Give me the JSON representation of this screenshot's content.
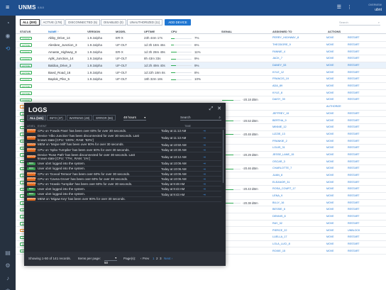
{
  "app": {
    "brand": "UNMS",
    "version": "0.8.0"
  },
  "user": {
    "label": "OVERVIEW",
    "name": "ubnt"
  },
  "filters": [
    {
      "label": "ALL (200)",
      "selected": true
    },
    {
      "label": "ACTIVE (178)",
      "selected": false
    },
    {
      "label": "DISCONNECTED (5)",
      "selected": false
    },
    {
      "label": "DISABLED (0)",
      "selected": false
    },
    {
      "label": "UNAUTHORIZED (11)",
      "selected": false
    }
  ],
  "add_device_label": "ADD DEVICE",
  "search_placeholder": "Search",
  "columns": {
    "status": "STATUS",
    "name": "NAME ↑",
    "version": "VERSION",
    "model": "MODEL",
    "uptime": "UPTIME",
    "cpu": "CPU",
    "signal": "SIGNAL",
    "assigned": "ASSIGNED TO",
    "actions": "ACTIONS"
  },
  "devices": [
    {
      "status": "ACTIVE",
      "name": "Abby_Drive_14",
      "version": "1.9.2alpha",
      "model": "ER-X",
      "uptime": "23h 44m 17s",
      "cpu": "7%",
      "cpu_pct": 7,
      "signal": "",
      "signal_pct": 0,
      "assigned": "PERRY_HIGHWAY_8",
      "action1": "MOVE",
      "action2": "RESTART",
      "hl": false
    },
    {
      "status": "ACTIVE",
      "name": "Alesbee_Junction_3",
      "version": "1.9.2alpha",
      "model": "UF-OLT",
      "uptime": "1d 3h 18m 46s",
      "cpu": "6%",
      "cpu_pct": 6,
      "signal": "",
      "signal_pct": 0,
      "assigned": "THEODORE_9",
      "action1": "MOVE",
      "action2": "RESTART",
      "hl": false
    },
    {
      "status": "ACTIVE",
      "name": "Amaste_Highway_8",
      "version": "1.9.2alpha",
      "model": "ER-X",
      "uptime": "1d 3h 28m 49s",
      "cpu": "11%",
      "cpu_pct": 11,
      "signal": "",
      "signal_pct": 0,
      "assigned": "FANNIE_4",
      "action1": "MOVE",
      "action2": "RESTART",
      "hl": false
    },
    {
      "status": "ACTIVE",
      "name": "Aplk_Junction_14",
      "version": "1.9.2alpha",
      "model": "UF-OLT",
      "uptime": "8h 43m 33s",
      "cpu": "9%",
      "cpu_pct": 9,
      "signal": "",
      "signal_pct": 0,
      "assigned": "JACK_7",
      "action1": "MOVE",
      "action2": "RESTART",
      "hl": false
    },
    {
      "status": "ACTIVE",
      "name": "Baldoa_Drive_3",
      "version": "1.9.2alpha",
      "model": "UF-OLT",
      "uptime": "1d 2h 49m 40s",
      "cpu": "9%",
      "cpu_pct": 9,
      "signal": "",
      "signal_pct": 0,
      "assigned": "DANEY_53",
      "action1": "MOVE",
      "action2": "RESTART",
      "hl": true
    },
    {
      "status": "ACTIVE",
      "name": "Baed_Road_16",
      "version": "1.9.2alpha",
      "model": "UF-OLT",
      "uptime": "1d 22h 18m 8s",
      "cpu": "8%",
      "cpu_pct": 8,
      "signal": "",
      "signal_pct": 0,
      "assigned": "KYLE_12",
      "action1": "MOVE",
      "action2": "RESTART",
      "hl": false
    },
    {
      "status": "ACTIVE",
      "name": "Baplok_Pike_5",
      "version": "1.9.2alpha",
      "model": "UF-OLT",
      "uptime": "18h 32m 18s",
      "cpu": "10%",
      "cpu_pct": 10,
      "signal": "",
      "signal_pct": 0,
      "assigned": "FRANCIS_19",
      "action1": "MOVE",
      "action2": "RESTART",
      "hl": false
    },
    {
      "status": "ACTIVE",
      "name": "",
      "version": "",
      "model": "",
      "uptime": "",
      "cpu": "",
      "cpu_pct": 0,
      "signal": "",
      "signal_pct": 0,
      "assigned": "ADA_89",
      "action1": "MOVE",
      "action2": "RESTART",
      "hl": false
    },
    {
      "status": "ACTIVE",
      "name": "",
      "version": "",
      "model": "",
      "uptime": "",
      "cpu": "",
      "cpu_pct": 0,
      "signal": "",
      "signal_pct": 0,
      "assigned": "KYLE_8",
      "action1": "MOVE",
      "action2": "RESTART",
      "hl": false
    },
    {
      "status": "ACTIVE",
      "name": "",
      "version": "",
      "model": "",
      "uptime": "",
      "cpu": "",
      "cpu_pct": 0,
      "signal": "-20.18 dBm",
      "signal_pct": 60,
      "assigned": "DAISY_39",
      "action1": "MOVE",
      "action2": "RESTART",
      "hl": false
    },
    {
      "status": "UNAUTHORIZED",
      "name": "",
      "version": "",
      "model": "",
      "uptime": "",
      "cpu": "",
      "cpu_pct": 0,
      "signal": "",
      "signal_pct": 0,
      "assigned": "",
      "action1": "AUTHORIZE",
      "action2": "",
      "hl": false
    },
    {
      "status": "ACTIVE",
      "name": "",
      "version": "",
      "model": "",
      "uptime": "",
      "cpu": "",
      "cpu_pct": 0,
      "signal": "",
      "signal_pct": 0,
      "assigned": "JEFFREY_19",
      "action1": "MOVE",
      "action2": "RESTART",
      "hl": false
    },
    {
      "status": "ACTIVE",
      "name": "",
      "version": "",
      "model": "",
      "uptime": "",
      "cpu": "",
      "cpu_pct": 0,
      "signal": "-20.53 dBm",
      "signal_pct": 60,
      "assigned": "BERTHA_9",
      "action1": "MOVE",
      "action2": "RESTART",
      "hl": false
    },
    {
      "status": "ACTIVE",
      "name": "",
      "version": "",
      "model": "",
      "uptime": "",
      "cpu": "",
      "cpu_pct": 0,
      "signal": "",
      "signal_pct": 0,
      "assigned": "MINNIE_12",
      "action1": "MOVE",
      "action2": "RESTART",
      "hl": false
    },
    {
      "status": "ACTIVE",
      "name": "",
      "version": "",
      "model": "",
      "uptime": "",
      "cpu": "",
      "cpu_pct": 0,
      "signal": "-20.48 dBm",
      "signal_pct": 60,
      "assigned": "LIZZIE_13",
      "action1": "MOVE",
      "action2": "RESTART",
      "hl": false
    },
    {
      "status": "ACTIVE",
      "name": "",
      "version": "",
      "model": "",
      "uptime": "",
      "cpu": "",
      "cpu_pct": 0,
      "signal": "",
      "signal_pct": 0,
      "assigned": "FRANKIE_2",
      "action1": "MOVE",
      "action2": "RESTART",
      "hl": false
    },
    {
      "status": "ACTIVE",
      "name": "",
      "version": "",
      "model": "",
      "uptime": "",
      "cpu": "",
      "cpu_pct": 0,
      "signal": "",
      "signal_pct": 0,
      "assigned": "LOUIS_31",
      "action1": "MOVE",
      "action2": "RESTART",
      "hl": false
    },
    {
      "status": "ACTIVE",
      "name": "",
      "version": "",
      "model": "",
      "uptime": "",
      "cpu": "",
      "cpu_pct": 0,
      "signal": "-20.29 dBm",
      "signal_pct": 60,
      "assigned": "JESSE_LANE_15",
      "action1": "MOVE",
      "action2": "RESTART",
      "hl": false
    },
    {
      "status": "ACTIVE",
      "name": "",
      "version": "",
      "model": "",
      "uptime": "",
      "cpu": "",
      "cpu_pct": 0,
      "signal": "",
      "signal_pct": 0,
      "assigned": "OSCAR_3",
      "action1": "MOVE",
      "action2": "RESTART",
      "hl": false
    },
    {
      "status": "ACTIVE",
      "name": "",
      "version": "",
      "model": "",
      "uptime": "",
      "cpu": "",
      "cpu_pct": 0,
      "signal": "-20.46 dBm",
      "signal_pct": 60,
      "assigned": "CHARLOTTE_7",
      "action1": "MOVE",
      "action2": "RESTART",
      "hl": false
    },
    {
      "status": "ACTIVE",
      "name": "",
      "version": "",
      "model": "",
      "uptime": "",
      "cpu": "",
      "cpu_pct": 0,
      "signal": "",
      "signal_pct": 0,
      "assigned": "JUAN_8",
      "action1": "MOVE",
      "action2": "RESTART",
      "hl": false
    },
    {
      "status": "ACTIVE",
      "name": "",
      "version": "",
      "model": "",
      "uptime": "",
      "cpu": "",
      "cpu_pct": 0,
      "signal": "",
      "signal_pct": 0,
      "assigned": "ELEANOR_31",
      "action1": "MOVE",
      "action2": "RESTART",
      "hl": false
    },
    {
      "status": "ACTIVE",
      "name": "",
      "version": "",
      "model": "",
      "uptime": "",
      "cpu": "",
      "cpu_pct": 0,
      "signal": "-20.43 dBm",
      "signal_pct": 60,
      "assigned": "ROSA_COURT_17",
      "action1": "MOVE",
      "action2": "RESTART",
      "hl": false
    },
    {
      "status": "ACTIVE",
      "name": "",
      "version": "",
      "model": "",
      "uptime": "",
      "cpu": "",
      "cpu_pct": 0,
      "signal": "",
      "signal_pct": 0,
      "assigned": "LENA_9",
      "action1": "MOVE",
      "action2": "RESTART",
      "hl": false
    },
    {
      "status": "ACTIVE",
      "name": "",
      "version": "",
      "model": "",
      "uptime": "",
      "cpu": "",
      "cpu_pct": 0,
      "signal": "-20.38 dBm",
      "signal_pct": 60,
      "assigned": "BILLY_16",
      "action1": "MOVE",
      "action2": "RESTART",
      "hl": false
    },
    {
      "status": "ACTIVE",
      "name": "",
      "version": "",
      "model": "",
      "uptime": "",
      "cpu": "",
      "cpu_pct": 0,
      "signal": "",
      "signal_pct": 0,
      "assigned": "BESSIE_6",
      "action1": "MOVE",
      "action2": "RESTART",
      "hl": false
    },
    {
      "status": "ACTIVE",
      "name": "",
      "version": "",
      "model": "",
      "uptime": "",
      "cpu": "",
      "cpu_pct": 0,
      "signal": "",
      "signal_pct": 0,
      "assigned": "DENNIS_8",
      "action1": "MOVE",
      "action2": "RESTART",
      "hl": false
    },
    {
      "status": "ACTIVE",
      "name": "",
      "version": "",
      "model": "",
      "uptime": "",
      "cpu": "",
      "cpu_pct": 0,
      "signal": "",
      "signal_pct": 0,
      "assigned": "RAY_32",
      "action1": "MOVE",
      "action2": "RESTART",
      "hl": false
    },
    {
      "status": "DISCONNECTED",
      "name": "Dover_Avenue_29",
      "version": "1.9.2alpha",
      "model": "UF-OLT",
      "uptime": "1d 22h 20m 52s",
      "cpu": "",
      "cpu_pct": 0,
      "signal": "",
      "signal_pct": 0,
      "assigned": "PIERCE_22",
      "action1": "MOVE",
      "action2": "UNBLOCK",
      "hl": false
    },
    {
      "status": "ACTIVE",
      "name": "Duran_Lane_14",
      "version": "1.9.2alpha",
      "model": "NanoG",
      "uptime": "",
      "cpu": "",
      "cpu_pct": 0,
      "signal": "",
      "signal_pct": 0,
      "assigned": "LUELLA_17",
      "action1": "MOVE",
      "action2": "RESTART",
      "hl": false
    },
    {
      "status": "ACTIVE",
      "name": "Ecrnd_Way_6",
      "version": "1.9.2alpha",
      "model": "ERPro-8",
      "uptime": "1d 3h 30m 4s",
      "cpu": "",
      "cpu_pct": 0,
      "signal": "",
      "signal_pct": 0,
      "assigned": "LOLA_LUCI_8",
      "action1": "MOVE",
      "action2": "RESTART",
      "hl": false
    },
    {
      "status": "ACTIVE",
      "name": "Eyebhb_Key_11",
      "version": "1.9.2alpha",
      "model": "ER-X",
      "uptime": "1d 3h 29m 20s",
      "cpu": "",
      "cpu_pct": 0,
      "signal": "",
      "signal_pct": 0,
      "assigned": "ROXIE_15",
      "action1": "MOVE",
      "action2": "RESTART",
      "hl": false
    }
  ],
  "logs": {
    "title": "LOGS",
    "tabs": [
      {
        "label": "ALL (141)",
        "selected": true
      },
      {
        "label": "INFO (37)",
        "selected": false
      },
      {
        "label": "WARNING (48)",
        "selected": false
      },
      {
        "label": "ERROR (56)",
        "selected": false
      }
    ],
    "range": "48 hours",
    "search_placeholder": "Search",
    "col_level": "LEVEL",
    "col_event": "EVENT",
    "col_time": "TIME",
    "entries": [
      {
        "level": "WARNING",
        "msg": "CPU on 'Fowds Pass' has been over 60% for over 30 seconds.",
        "time": "Today at 11:13 AM",
        "lines": 1
      },
      {
        "level": "WARNING",
        "msg": "Device 'Albo Junction' has been disconnected for over 30 seconds. Last known state [CPU: '100%', RAM: '92%']",
        "time": "Today at 11:13 AM",
        "lines": 2
      },
      {
        "level": "WARNING",
        "msg": "MEM on 'Mojse Mill' has been over 90% for over 30 seconds.",
        "time": "Today at 10:50 AM",
        "lines": 1
      },
      {
        "level": "WARNING",
        "msg": "CPU on 'Spbo Turnpike' has been over 60% for over 30 seconds.",
        "time": "Today at 10:30 AM",
        "lines": 1
      },
      {
        "level": "WARNING",
        "msg": "Device 'Rose Path' has been disconnected for over 30 seconds. Last known state [CPU: '77%', RAM: '1%']",
        "time": "Today at 10:12 AM",
        "lines": 2
      },
      {
        "level": "INFO",
        "msg": "User ubnt logged into the system.",
        "time": "Today at 10:06 AM",
        "lines": 1
      },
      {
        "level": "INFO",
        "msg": "User ubnt logged into the system.",
        "time": "Today at 10:06 AM",
        "lines": 1
      },
      {
        "level": "WARNING",
        "msg": "CPU on 'Govod Terrace' has been over 60% for over 30 seconds.",
        "time": "Today at 10:06 AM",
        "lines": 1
      },
      {
        "level": "WARNING",
        "msg": "CPU on 'Cavna Grove' has been over 60% for over 30 seconds.",
        "time": "Today at 10:06 AM",
        "lines": 1
      },
      {
        "level": "WARNING",
        "msg": "CPU on 'Howdo Turnpike' has been over 60% for over 30 seconds.",
        "time": "Today at 9:48 AM",
        "lines": 1
      },
      {
        "level": "INFO",
        "msg": "User ubnt logged into the system.",
        "time": "Today at 9:43 AM",
        "lines": 1
      },
      {
        "level": "INFO",
        "msg": "User ubnt logged into the system.",
        "time": "Today at 9:43 AM",
        "lines": 1
      },
      {
        "level": "WARNING",
        "msg": "MEM on 'Migaw Key' has been over 90% for over 30 seconds.",
        "time": "",
        "lines": 1
      }
    ],
    "footer": {
      "showing": "Showing 1-50 of 141 records.",
      "ipp_label": "Items per page:",
      "ipp_value": "50",
      "page_label": "Page(s):",
      "prev": "‹ Prev",
      "pages": [
        "1",
        "2",
        "3"
      ],
      "next": "Next ›"
    }
  }
}
